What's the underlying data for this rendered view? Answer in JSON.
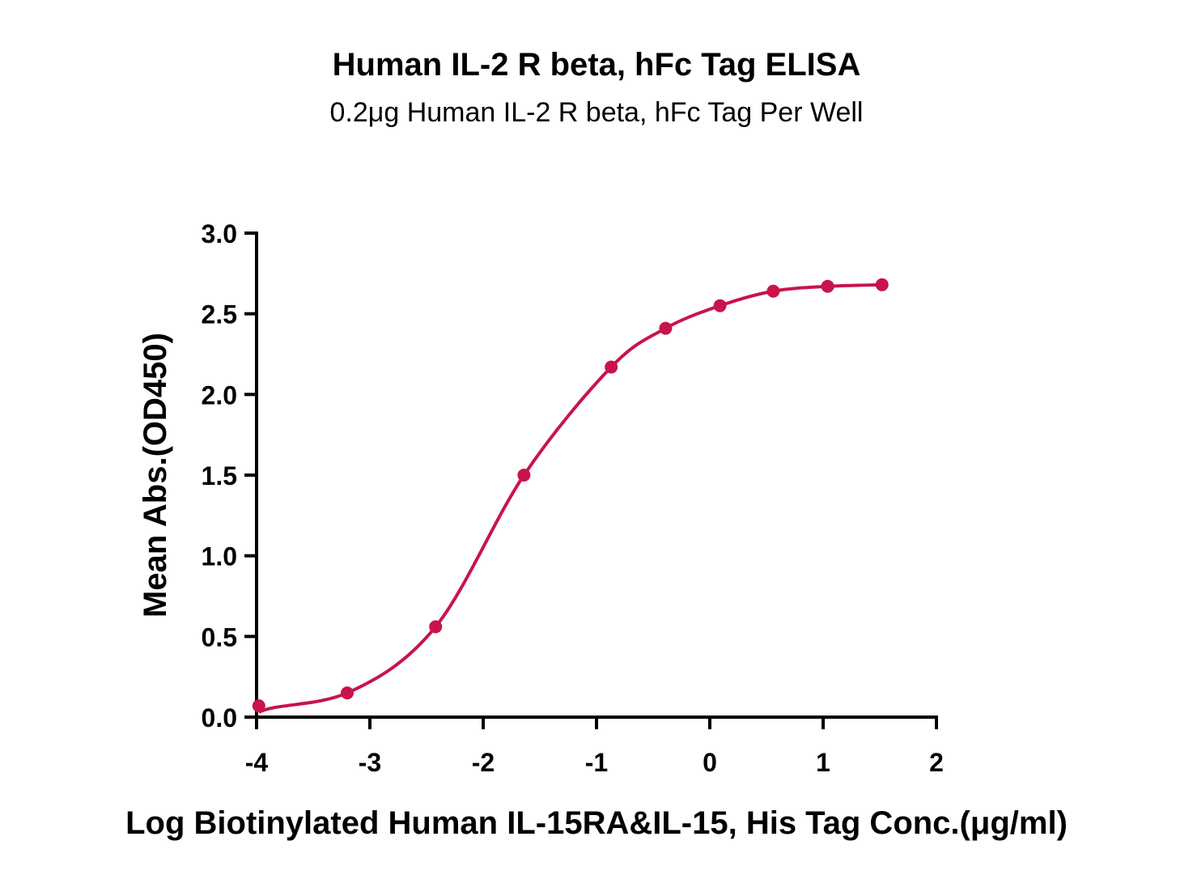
{
  "chart_data": {
    "type": "scatter",
    "title": "Human IL-2 R beta, hFc Tag ELISA",
    "subtitle": "0.2μg Human IL-2 R beta, hFc Tag Per Well",
    "xlabel": "Log Biotinylated Human IL-15RA&IL-15, His Tag Conc.(μg/ml)",
    "ylabel": "Mean Abs.(OD450)",
    "xlim": [
      -4,
      2
    ],
    "ylim": [
      0,
      3.0
    ],
    "xticks": [
      "-4",
      "-3",
      "-2",
      "-1",
      "0",
      "1",
      "2"
    ],
    "yticks": [
      "0.0",
      "0.5",
      "1.0",
      "1.5",
      "2.0",
      "2.5",
      "3.0"
    ],
    "grid": false,
    "color": "#c8144a",
    "series": [
      {
        "name": "OD450",
        "x": [
          -3.98,
          -3.2,
          -2.42,
          -1.64,
          -0.87,
          -0.39,
          0.09,
          0.56,
          1.04,
          1.52
        ],
        "y": [
          0.07,
          0.15,
          0.56,
          1.5,
          2.17,
          2.41,
          2.55,
          2.64,
          2.67,
          2.68
        ]
      }
    ]
  }
}
